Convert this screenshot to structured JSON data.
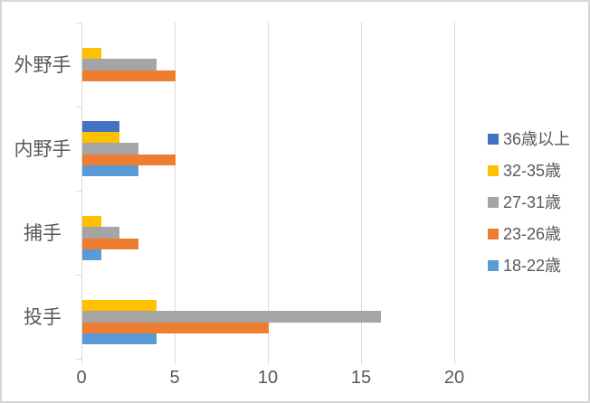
{
  "chart_data": {
    "type": "bar",
    "orientation": "horizontal",
    "title": "",
    "categories": [
      "外野手",
      "内野手",
      "捕手",
      "投手"
    ],
    "series": [
      {
        "name": "36歳以上",
        "color": "#4472C4",
        "values": [
          0,
          2,
          0,
          0
        ]
      },
      {
        "name": "32-35歳",
        "color": "#FFC000",
        "values": [
          1,
          2,
          1,
          4
        ]
      },
      {
        "name": "27-31歳",
        "color": "#A5A5A5",
        "values": [
          4,
          3,
          2,
          16
        ]
      },
      {
        "name": "23-26歳",
        "color": "#ED7D31",
        "values": [
          5,
          5,
          3,
          10
        ]
      },
      {
        "name": "18-22歳",
        "color": "#5B9BD5",
        "values": [
          0,
          3,
          1,
          4
        ]
      }
    ],
    "x_axis": {
      "min": 0,
      "max": 20,
      "ticks": [
        0,
        5,
        10,
        15,
        20
      ]
    },
    "y_axis": {
      "label": ""
    },
    "legend": {
      "position": "right"
    },
    "grid": true,
    "styles": {
      "text_color": "#595959",
      "grid_color": "#D9D9D9",
      "frame_border_color": "#D6D6D6",
      "background": "#FFFFFF"
    }
  }
}
